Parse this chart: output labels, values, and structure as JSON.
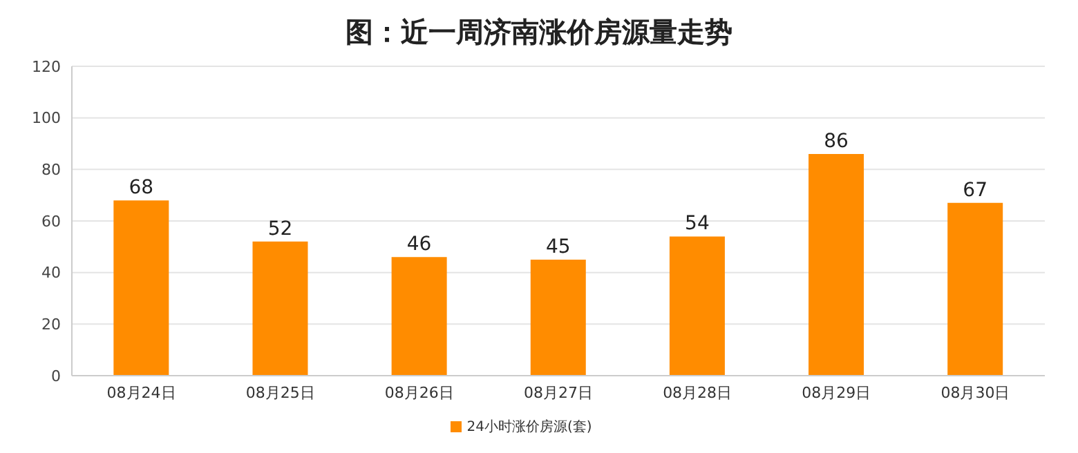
{
  "chart_data": {
    "type": "bar",
    "title": "图：近一周济南涨价房源量走势",
    "categories": [
      "08月24日",
      "08月25日",
      "08月26日",
      "08月27日",
      "08月28日",
      "08月29日",
      "08月30日"
    ],
    "series": [
      {
        "name": "24小时涨价房源(套)",
        "color": "#ff8c00",
        "values": [
          68,
          52,
          46,
          45,
          54,
          86,
          67
        ]
      }
    ],
    "ylim": [
      0,
      120
    ],
    "yticks": [
      0,
      20,
      40,
      60,
      80,
      100,
      120
    ],
    "grid": "y",
    "legend": "bottom",
    "data_labels": true
  }
}
